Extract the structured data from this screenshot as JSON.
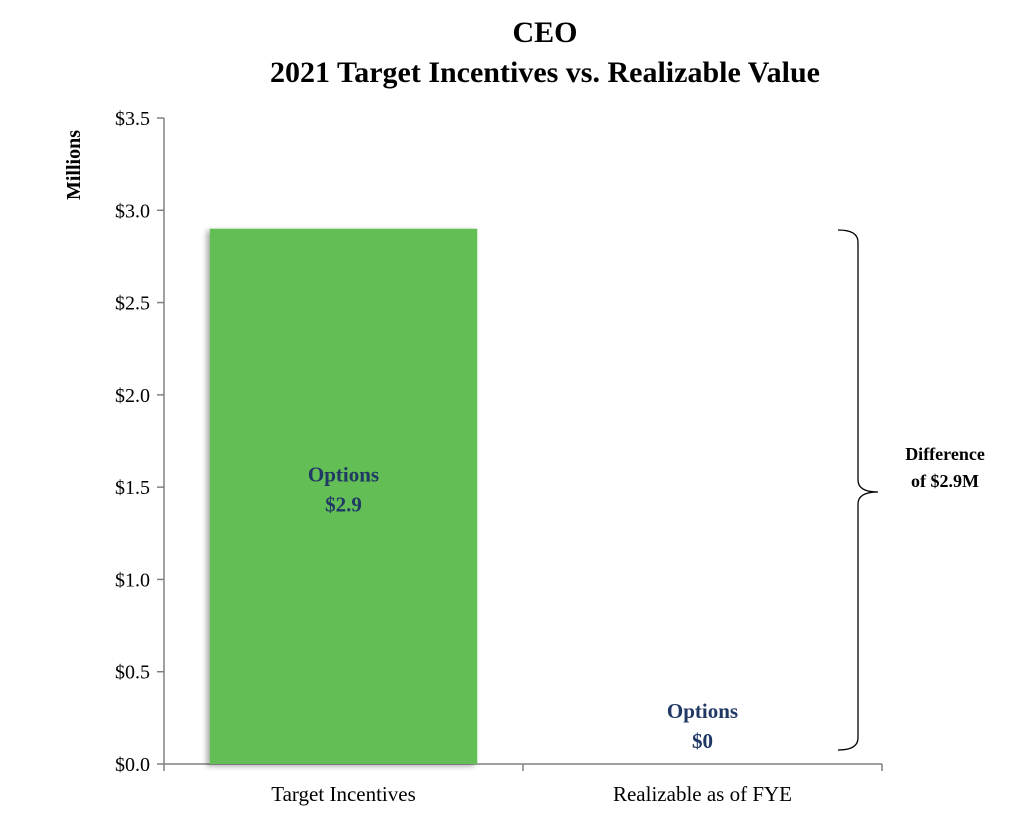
{
  "chart_data": {
    "type": "bar",
    "title": [
      "CEO",
      "2021 Target Incentives vs. Realizable  Value"
    ],
    "ylabel": "Millions",
    "xlabel": "",
    "categories": [
      "Target Incentives",
      "Realizable as of FYE"
    ],
    "series": [
      {
        "name": "Options",
        "values": [
          2.9,
          0
        ]
      }
    ],
    "ylim": [
      0,
      3.5
    ],
    "ytick_values": [
      0,
      0.5,
      1,
      1.5,
      2,
      2.5,
      3,
      3.5
    ],
    "ytick_labels": [
      "$0.0",
      "$0.5",
      "$1.0",
      "$1.5",
      "$2.0",
      "$2.5",
      "$3.0",
      "$3.5"
    ],
    "bar_labels": [
      {
        "line1": "Options",
        "line2": "$2.9"
      },
      {
        "line1": "Options",
        "line2": "$0"
      }
    ],
    "annotation": {
      "line1": "Difference",
      "line2": "of $2.9M"
    },
    "grid": false,
    "colors": {
      "bar": "#63be56",
      "label": "#1f3864",
      "axis": "#808080"
    }
  }
}
